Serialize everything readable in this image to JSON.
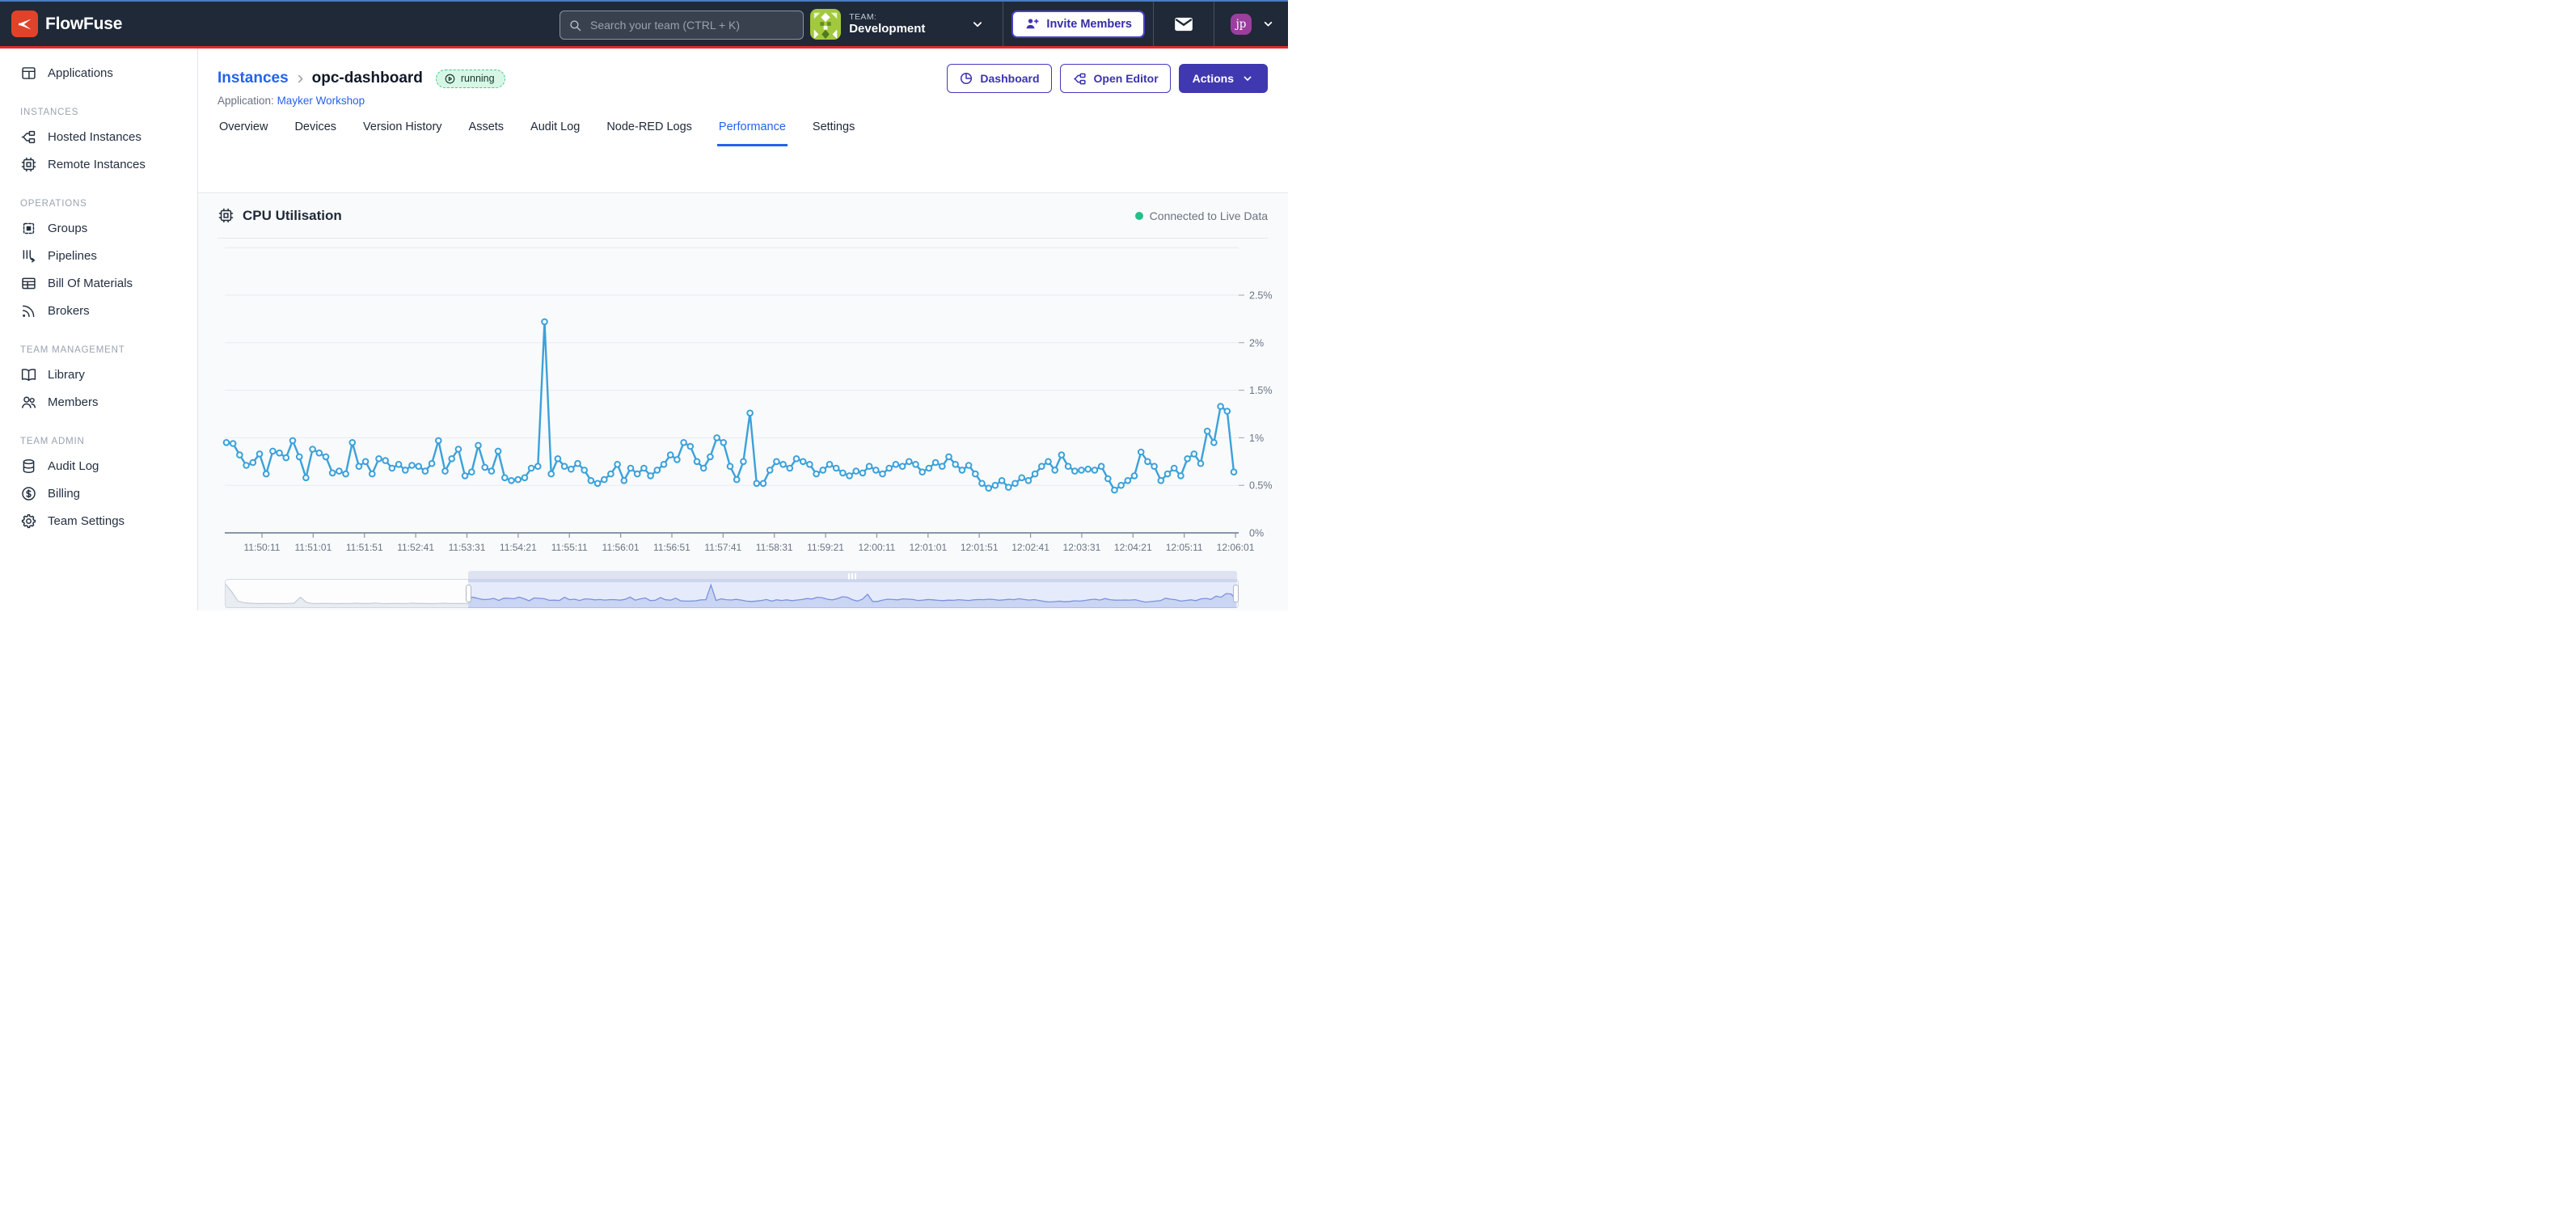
{
  "header": {
    "logo_text": "FlowFuse",
    "search_placeholder": "Search your team (CTRL + K)",
    "team_label": "TEAM:",
    "team_name": "Development",
    "invite_label": "Invite Members",
    "avatar_initials": "jp"
  },
  "sidebar": {
    "sections": [
      {
        "label": null,
        "items": [
          {
            "slug": "applications",
            "label": "Applications",
            "icon": "applications"
          }
        ]
      },
      {
        "label": "INSTANCES",
        "items": [
          {
            "slug": "hosted-instances",
            "label": "Hosted Instances",
            "icon": "branch"
          },
          {
            "slug": "remote-instances",
            "label": "Remote Instances",
            "icon": "chip"
          }
        ]
      },
      {
        "label": "OPERATIONS",
        "items": [
          {
            "slug": "groups",
            "label": "Groups",
            "icon": "groups"
          },
          {
            "slug": "pipelines",
            "label": "Pipelines",
            "icon": "pipelines"
          },
          {
            "slug": "bill-of-materials",
            "label": "Bill Of Materials",
            "icon": "table"
          },
          {
            "slug": "brokers",
            "label": "Brokers",
            "icon": "rss"
          }
        ]
      },
      {
        "label": "TEAM MANAGEMENT",
        "items": [
          {
            "slug": "library",
            "label": "Library",
            "icon": "book"
          },
          {
            "slug": "members",
            "label": "Members",
            "icon": "people"
          }
        ]
      },
      {
        "label": "TEAM ADMIN",
        "items": [
          {
            "slug": "audit-log",
            "label": "Audit Log",
            "icon": "database"
          },
          {
            "slug": "billing",
            "label": "Billing",
            "icon": "dollar"
          },
          {
            "slug": "team-settings",
            "label": "Team Settings",
            "icon": "gear"
          }
        ]
      }
    ]
  },
  "page": {
    "breadcrumb_root": "Instances",
    "instance_name": "opc-dashboard",
    "status": "running",
    "application_label": "Application:",
    "application_name": "Mayker Workshop",
    "actions": [
      {
        "label": "Dashboard"
      },
      {
        "label": "Open Editor"
      },
      {
        "label": "Actions"
      }
    ]
  },
  "tabs": {
    "active": "performance",
    "items": [
      {
        "slug": "overview",
        "label": "Overview"
      },
      {
        "slug": "devices",
        "label": "Devices"
      },
      {
        "slug": "version-history",
        "label": "Version History"
      },
      {
        "slug": "assets",
        "label": "Assets"
      },
      {
        "slug": "audit-log",
        "label": "Audit Log"
      },
      {
        "slug": "node-red-logs",
        "label": "Node-RED Logs"
      },
      {
        "slug": "performance",
        "label": "Performance"
      },
      {
        "slug": "settings",
        "label": "Settings"
      }
    ]
  },
  "chart": {
    "title": "CPU Utilisation",
    "status_text": "Connected to Live Data",
    "status_color": "#22c08a",
    "line_color": "#3ba1da"
  },
  "chart_data": {
    "type": "line",
    "title": "CPU Utilisation",
    "series_name": "CPU %",
    "unit": "%",
    "ylim": [
      0,
      3
    ],
    "grid": true,
    "y_ticks": [
      {
        "value": 0,
        "label": "0%"
      },
      {
        "value": 0.5,
        "label": "0.5%"
      },
      {
        "value": 1,
        "label": "1%"
      },
      {
        "value": 1.5,
        "label": "1.5%"
      },
      {
        "value": 2,
        "label": "2%"
      },
      {
        "value": 2.5,
        "label": "2.5%"
      }
    ],
    "x_tick_labels": [
      "11:50:11",
      "11:51:01",
      "11:51:51",
      "11:52:41",
      "11:53:31",
      "11:54:21",
      "11:55:11",
      "11:56:01",
      "11:56:51",
      "11:57:41",
      "11:58:31",
      "11:59:21",
      "12:00:11",
      "12:01:01",
      "12:01:51",
      "12:02:41",
      "12:03:31",
      "12:04:21",
      "12:05:11",
      "12:06:01"
    ],
    "values": [
      0.95,
      0.94,
      0.82,
      0.71,
      0.74,
      0.83,
      0.62,
      0.86,
      0.84,
      0.79,
      0.97,
      0.8,
      0.58,
      0.88,
      0.84,
      0.8,
      0.63,
      0.65,
      0.62,
      0.95,
      0.7,
      0.75,
      0.62,
      0.78,
      0.76,
      0.68,
      0.72,
      0.66,
      0.71,
      0.7,
      0.65,
      0.73,
      0.97,
      0.65,
      0.78,
      0.88,
      0.6,
      0.64,
      0.92,
      0.69,
      0.65,
      0.86,
      0.58,
      0.55,
      0.56,
      0.58,
      0.68,
      0.7,
      2.22,
      0.62,
      0.78,
      0.7,
      0.67,
      0.73,
      0.66,
      0.55,
      0.52,
      0.56,
      0.62,
      0.72,
      0.55,
      0.68,
      0.62,
      0.68,
      0.6,
      0.66,
      0.72,
      0.82,
      0.77,
      0.95,
      0.91,
      0.75,
      0.68,
      0.8,
      1.0,
      0.95,
      0.7,
      0.56,
      0.75,
      1.26,
      0.52,
      0.52,
      0.66,
      0.75,
      0.72,
      0.68,
      0.78,
      0.75,
      0.72,
      0.62,
      0.66,
      0.72,
      0.68,
      0.63,
      0.6,
      0.65,
      0.63,
      0.7,
      0.66,
      0.62,
      0.68,
      0.72,
      0.7,
      0.75,
      0.72,
      0.64,
      0.68,
      0.74,
      0.7,
      0.8,
      0.72,
      0.66,
      0.71,
      0.62,
      0.52,
      0.47,
      0.5,
      0.55,
      0.48,
      0.52,
      0.58,
      0.55,
      0.62,
      0.7,
      0.75,
      0.66,
      0.82,
      0.7,
      0.65,
      0.66,
      0.67,
      0.66,
      0.7,
      0.57,
      0.45,
      0.5,
      0.55,
      0.6,
      0.85,
      0.75,
      0.7,
      0.55,
      0.62,
      0.68,
      0.6,
      0.78,
      0.83,
      0.73,
      1.07,
      0.95,
      1.33,
      1.28,
      0.64
    ],
    "brush": {
      "selection_start_pct": 24,
      "selection_end_pct": 99.8,
      "pre_values": [
        2.3,
        1.5,
        0.55,
        0.38,
        0.33,
        0.3,
        0.3,
        0.32,
        0.3,
        0.29,
        0.31,
        0.33,
        0.95,
        0.42,
        0.31,
        0.3,
        0.32,
        0.3,
        0.29,
        0.3,
        0.31,
        0.33,
        0.3,
        0.3,
        0.36,
        0.31,
        0.29,
        0.32,
        0.3,
        0.31,
        0.34,
        0.3,
        0.3,
        0.29,
        0.31,
        0.33,
        0.3,
        0.31,
        0.3,
        0.31
      ]
    }
  }
}
